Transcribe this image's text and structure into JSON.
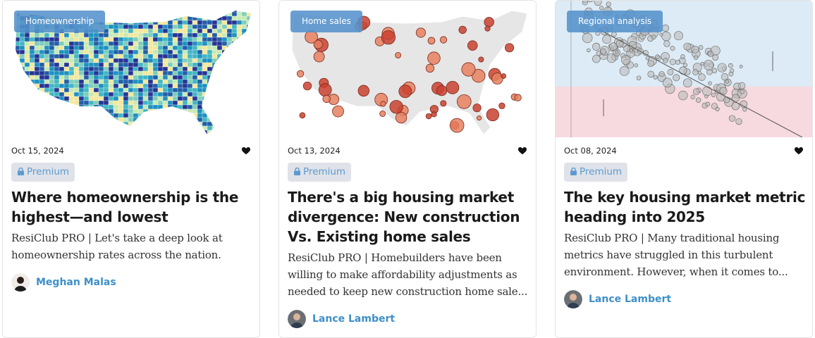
{
  "cards": [
    {
      "tag": "Homeownership",
      "date": "Oct 15, 2024",
      "badge": "Premium",
      "title": "Where homeownership is the highest—and lowest",
      "excerpt": "ResiClub PRO | Let's take a deep look at homeownership rates across the nation.",
      "author": "Meghan Malas"
    },
    {
      "tag": "Home sales",
      "date": "Oct 13, 2024",
      "badge": "Premium",
      "title": "There's a big housing market divergence: New construction Vs. Existing home sales",
      "excerpt": "ResiClub PRO | Homebuilders have been willing to make affordability adjustments as needed to keep new construction home sale...",
      "author": "Lance Lambert"
    },
    {
      "tag": "Regional analysis",
      "date": "Oct 08, 2024",
      "badge": "Premium",
      "title": "The key housing market metric heading into 2025",
      "excerpt": "ResiClub PRO | Many traditional housing metrics have struggled in this turbulent environment. However, when it comes to...",
      "author": "Lance Lambert"
    }
  ]
}
